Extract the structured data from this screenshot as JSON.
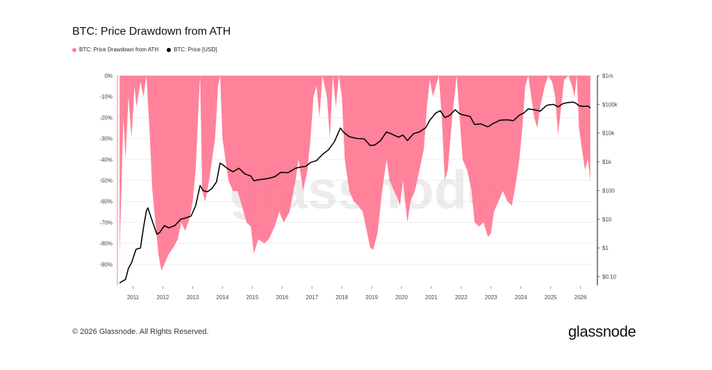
{
  "title": "BTC: Price Drawdown from ATH",
  "legend": [
    {
      "label": "BTC: Price Drawdown from ATH",
      "color": "#ff7b95"
    },
    {
      "label": "BTC: Price [USD]",
      "color": "#000000"
    }
  ],
  "watermark": "glassnode",
  "footer": {
    "copyright": "© 2026 Glassnode. All Rights Reserved.",
    "logo": "glassnode"
  },
  "chart_data": {
    "type": "area",
    "x_ticks": [
      "2011",
      "2012",
      "2013",
      "2014",
      "2015",
      "2016",
      "2017",
      "2018",
      "2019",
      "2020",
      "2021",
      "2022",
      "2023",
      "2024",
      "2025",
      "2026"
    ],
    "y_left": {
      "label": "",
      "ticks": [
        "0%",
        "-10%",
        "-20%",
        "-30%",
        "-40%",
        "-50%",
        "-60%",
        "-70%",
        "-80%",
        "-90%"
      ],
      "ylim": [
        -100,
        0
      ]
    },
    "y_right": {
      "label": "",
      "scale": "log",
      "ticks": [
        "$1m",
        "$100k",
        "$10k",
        "$1k",
        "$100",
        "$10",
        "$1",
        "$0.10"
      ]
    },
    "grid": true,
    "legend_position": "top-left",
    "series": [
      {
        "name": "BTC: Price Drawdown from ATH",
        "axis": "left",
        "color": "#ff7b95",
        "points": [
          [
            2010.55,
            -85
          ],
          [
            2010.6,
            -60
          ],
          [
            2010.68,
            -20
          ],
          [
            2010.75,
            -40
          ],
          [
            2010.85,
            -10
          ],
          [
            2010.95,
            -30
          ],
          [
            2011.05,
            -5
          ],
          [
            2011.12,
            -15
          ],
          [
            2011.25,
            -3
          ],
          [
            2011.35,
            -10
          ],
          [
            2011.45,
            0
          ],
          [
            2011.55,
            -25
          ],
          [
            2011.65,
            -55
          ],
          [
            2011.75,
            -70
          ],
          [
            2011.85,
            -85
          ],
          [
            2011.95,
            -93
          ],
          [
            2012.05,
            -90
          ],
          [
            2012.2,
            -85
          ],
          [
            2012.35,
            -82
          ],
          [
            2012.5,
            -78
          ],
          [
            2012.62,
            -70
          ],
          [
            2012.75,
            -74
          ],
          [
            2012.9,
            -68
          ],
          [
            2013.0,
            -60
          ],
          [
            2013.1,
            -45
          ],
          [
            2013.18,
            -20
          ],
          [
            2013.25,
            0
          ],
          [
            2013.32,
            -55
          ],
          [
            2013.42,
            -60
          ],
          [
            2013.55,
            -50
          ],
          [
            2013.65,
            -40
          ],
          [
            2013.75,
            -30
          ],
          [
            2013.85,
            -5
          ],
          [
            2013.92,
            0
          ],
          [
            2014.0,
            -30
          ],
          [
            2014.1,
            -40
          ],
          [
            2014.2,
            -50
          ],
          [
            2014.35,
            -55
          ],
          [
            2014.5,
            -55
          ],
          [
            2014.65,
            -62
          ],
          [
            2014.8,
            -70
          ],
          [
            2014.95,
            -72
          ],
          [
            2015.05,
            -85
          ],
          [
            2015.2,
            -78
          ],
          [
            2015.4,
            -80
          ],
          [
            2015.55,
            -78
          ],
          [
            2015.75,
            -72
          ],
          [
            2015.9,
            -65
          ],
          [
            2016.05,
            -70
          ],
          [
            2016.25,
            -65
          ],
          [
            2016.45,
            -50
          ],
          [
            2016.55,
            -40
          ],
          [
            2016.7,
            -55
          ],
          [
            2016.85,
            -45
          ],
          [
            2016.95,
            -30
          ],
          [
            2017.05,
            -10
          ],
          [
            2017.15,
            -5
          ],
          [
            2017.25,
            -20
          ],
          [
            2017.35,
            0
          ],
          [
            2017.5,
            -10
          ],
          [
            2017.6,
            -30
          ],
          [
            2017.7,
            0
          ],
          [
            2017.8,
            -15
          ],
          [
            2017.9,
            0
          ],
          [
            2018.0,
            -10
          ],
          [
            2018.1,
            -40
          ],
          [
            2018.25,
            -55
          ],
          [
            2018.4,
            -60
          ],
          [
            2018.55,
            -62
          ],
          [
            2018.7,
            -65
          ],
          [
            2018.85,
            -75
          ],
          [
            2018.95,
            -82
          ],
          [
            2019.05,
            -83
          ],
          [
            2019.2,
            -75
          ],
          [
            2019.35,
            -55
          ],
          [
            2019.5,
            -40
          ],
          [
            2019.6,
            -50
          ],
          [
            2019.75,
            -55
          ],
          [
            2019.85,
            -58
          ],
          [
            2019.95,
            -62
          ],
          [
            2020.05,
            -50
          ],
          [
            2020.2,
            -70
          ],
          [
            2020.3,
            -60
          ],
          [
            2020.45,
            -55
          ],
          [
            2020.6,
            -45
          ],
          [
            2020.75,
            -35
          ],
          [
            2020.85,
            -15
          ],
          [
            2020.95,
            -2
          ],
          [
            2021.05,
            -10
          ],
          [
            2021.15,
            -5
          ],
          [
            2021.25,
            0
          ],
          [
            2021.35,
            -20
          ],
          [
            2021.45,
            -50
          ],
          [
            2021.55,
            -45
          ],
          [
            2021.7,
            -20
          ],
          [
            2021.85,
            0
          ],
          [
            2021.95,
            -20
          ],
          [
            2022.05,
            -40
          ],
          [
            2022.2,
            -45
          ],
          [
            2022.35,
            -55
          ],
          [
            2022.45,
            -70
          ],
          [
            2022.6,
            -72
          ],
          [
            2022.75,
            -70
          ],
          [
            2022.9,
            -77
          ],
          [
            2023.0,
            -75
          ],
          [
            2023.1,
            -65
          ],
          [
            2023.25,
            -60
          ],
          [
            2023.4,
            -55
          ],
          [
            2023.55,
            -60
          ],
          [
            2023.7,
            -62
          ],
          [
            2023.85,
            -50
          ],
          [
            2023.95,
            -40
          ],
          [
            2024.05,
            -25
          ],
          [
            2024.15,
            -5
          ],
          [
            2024.25,
            0
          ],
          [
            2024.35,
            -10
          ],
          [
            2024.45,
            -20
          ],
          [
            2024.55,
            -25
          ],
          [
            2024.65,
            -15
          ],
          [
            2024.8,
            -5
          ],
          [
            2024.92,
            0
          ],
          [
            2025.05,
            -3
          ],
          [
            2025.15,
            -10
          ],
          [
            2025.25,
            -28
          ],
          [
            2025.35,
            -15
          ],
          [
            2025.45,
            -2
          ],
          [
            2025.6,
            0
          ],
          [
            2025.72,
            -5
          ],
          [
            2025.8,
            -10
          ],
          [
            2025.88,
            0
          ],
          [
            2025.95,
            -25
          ],
          [
            2026.05,
            -35
          ],
          [
            2026.15,
            -45
          ],
          [
            2026.25,
            -40
          ],
          [
            2026.33,
            -50
          ]
        ]
      },
      {
        "name": "BTC: Price [USD]",
        "axis": "right",
        "color": "#000000",
        "points": [
          [
            2010.55,
            0.06
          ],
          [
            2010.65,
            0.07
          ],
          [
            2010.75,
            0.08
          ],
          [
            2010.85,
            0.2
          ],
          [
            2010.95,
            0.3
          ],
          [
            2011.1,
            0.9
          ],
          [
            2011.25,
            1
          ],
          [
            2011.35,
            5
          ],
          [
            2011.45,
            20
          ],
          [
            2011.5,
            25
          ],
          [
            2011.6,
            12
          ],
          [
            2011.7,
            6
          ],
          [
            2011.8,
            3
          ],
          [
            2011.9,
            3.5
          ],
          [
            2012.05,
            6
          ],
          [
            2012.2,
            5
          ],
          [
            2012.4,
            6
          ],
          [
            2012.6,
            10
          ],
          [
            2012.75,
            11
          ],
          [
            2012.95,
            13
          ],
          [
            2013.1,
            30
          ],
          [
            2013.25,
            150
          ],
          [
            2013.35,
            100
          ],
          [
            2013.5,
            90
          ],
          [
            2013.65,
            120
          ],
          [
            2013.8,
            200
          ],
          [
            2013.92,
            900
          ],
          [
            2014.0,
            800
          ],
          [
            2014.15,
            600
          ],
          [
            2014.35,
            450
          ],
          [
            2014.55,
            600
          ],
          [
            2014.75,
            380
          ],
          [
            2014.95,
            320
          ],
          [
            2015.05,
            220
          ],
          [
            2015.25,
            240
          ],
          [
            2015.5,
            260
          ],
          [
            2015.75,
            300
          ],
          [
            2015.95,
            430
          ],
          [
            2016.2,
            420
          ],
          [
            2016.45,
            600
          ],
          [
            2016.6,
            650
          ],
          [
            2016.8,
            700
          ],
          [
            2016.95,
            950
          ],
          [
            2017.15,
            1100
          ],
          [
            2017.35,
            1800
          ],
          [
            2017.55,
            2600
          ],
          [
            2017.75,
            5000
          ],
          [
            2017.95,
            15000
          ],
          [
            2018.05,
            11000
          ],
          [
            2018.25,
            7500
          ],
          [
            2018.5,
            6500
          ],
          [
            2018.75,
            6300
          ],
          [
            2018.95,
            3700
          ],
          [
            2019.1,
            3800
          ],
          [
            2019.3,
            5500
          ],
          [
            2019.5,
            11000
          ],
          [
            2019.7,
            9000
          ],
          [
            2019.9,
            7200
          ],
          [
            2020.05,
            8500
          ],
          [
            2020.2,
            5500
          ],
          [
            2020.4,
            9500
          ],
          [
            2020.6,
            11000
          ],
          [
            2020.8,
            15000
          ],
          [
            2020.95,
            28000
          ],
          [
            2021.15,
            50000
          ],
          [
            2021.3,
            60000
          ],
          [
            2021.45,
            35000
          ],
          [
            2021.6,
            40000
          ],
          [
            2021.8,
            65000
          ],
          [
            2021.95,
            47000
          ],
          [
            2022.1,
            42000
          ],
          [
            2022.3,
            38000
          ],
          [
            2022.45,
            20000
          ],
          [
            2022.65,
            21000
          ],
          [
            2022.9,
            16500
          ],
          [
            2023.05,
            21000
          ],
          [
            2023.3,
            28000
          ],
          [
            2023.55,
            29000
          ],
          [
            2023.75,
            27000
          ],
          [
            2023.95,
            42000
          ],
          [
            2024.1,
            50000
          ],
          [
            2024.25,
            70000
          ],
          [
            2024.45,
            65000
          ],
          [
            2024.65,
            58000
          ],
          [
            2024.85,
            90000
          ],
          [
            2024.95,
            97000
          ],
          [
            2025.1,
            100000
          ],
          [
            2025.25,
            82000
          ],
          [
            2025.4,
            105000
          ],
          [
            2025.55,
            115000
          ],
          [
            2025.75,
            120000
          ],
          [
            2025.85,
            110000
          ],
          [
            2025.95,
            90000
          ],
          [
            2026.1,
            85000
          ],
          [
            2026.25,
            88000
          ],
          [
            2026.33,
            75000
          ]
        ]
      }
    ]
  }
}
